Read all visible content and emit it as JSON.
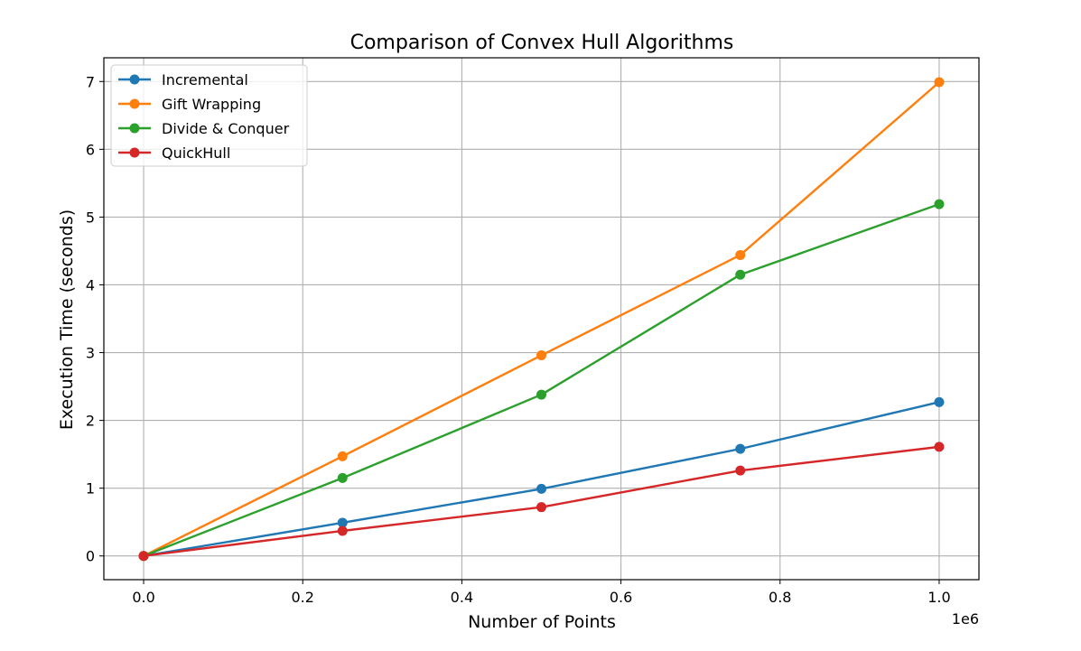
{
  "chart_data": {
    "type": "line",
    "title": "Comparison of Convex Hull Algorithms",
    "xlabel": "Number of Points",
    "ylabel": "Execution Time (seconds)",
    "x_offset_label": "1e6",
    "x": [
      0,
      250000,
      500000,
      750000,
      1000000
    ],
    "xlim": [
      -50000,
      1050000
    ],
    "ylim": [
      -0.35,
      7.35
    ],
    "x_ticks": [
      0,
      200000,
      400000,
      600000,
      800000,
      1000000
    ],
    "x_tick_labels": [
      "0.0",
      "0.2",
      "0.4",
      "0.6",
      "0.8",
      "1.0"
    ],
    "y_ticks": [
      0,
      1,
      2,
      3,
      4,
      5,
      6,
      7
    ],
    "y_tick_labels": [
      "0",
      "1",
      "2",
      "3",
      "4",
      "5",
      "6",
      "7"
    ],
    "grid": true,
    "legend_position": "top-left",
    "series": [
      {
        "name": "Incremental",
        "color": "#1f77b4",
        "values": [
          0.0,
          0.49,
          0.99,
          1.58,
          2.27
        ]
      },
      {
        "name": "Gift Wrapping",
        "color": "#ff7f0e",
        "values": [
          0.0,
          1.47,
          2.96,
          4.44,
          6.99
        ]
      },
      {
        "name": "Divide & Conquer",
        "color": "#2ca02c",
        "values": [
          0.0,
          1.15,
          2.38,
          4.15,
          5.19
        ]
      },
      {
        "name": "QuickHull",
        "color": "#d62728",
        "values": [
          0.0,
          0.37,
          0.72,
          1.26,
          1.61
        ]
      }
    ]
  }
}
